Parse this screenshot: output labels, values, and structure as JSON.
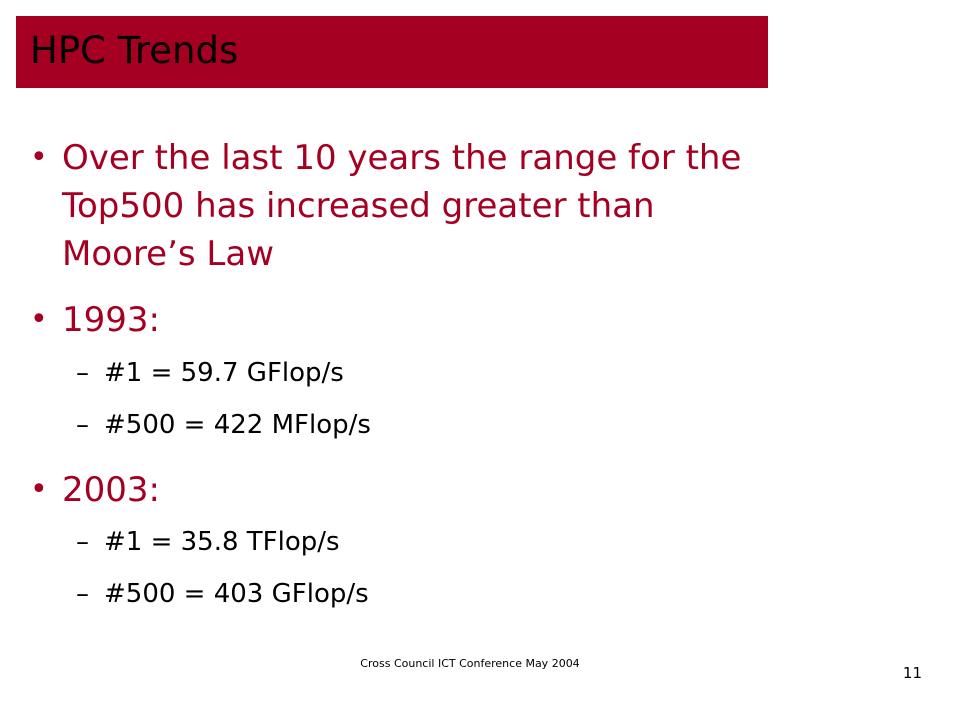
{
  "slide": {
    "title": "HPC Trends",
    "bullets": [
      {
        "lines": [
          "Over the last 10 years the range for the",
          "Top500 has increased greater than",
          "Moore’s Law"
        ]
      },
      {
        "text": "1993:",
        "subs": [
          "#1 = 59.7 GFlop/s",
          "#500 = 422 MFlop/s"
        ]
      },
      {
        "text": "2003:",
        "subs": [
          "#1 = 35.8 TFlop/s",
          "#500 = 403 GFlop/s"
        ]
      }
    ],
    "dash": "–",
    "dot": "•",
    "footer": "Cross Council ICT Conference May 2004",
    "page_number": "11",
    "colors": {
      "accent": "#a50021",
      "text": "#000000",
      "background": "#ffffff"
    }
  }
}
